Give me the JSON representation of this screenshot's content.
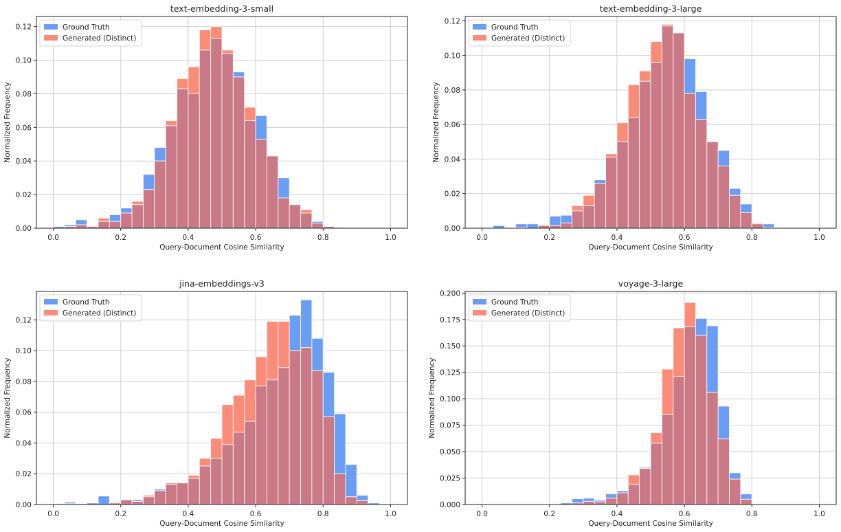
{
  "figure": {
    "legend": {
      "ground_truth": "Ground Truth",
      "generated": "Generated (Distinct)"
    },
    "colors": {
      "ground_truth": "#6a9ef5",
      "generated": "#fa8c78",
      "overlap": "#c97a86",
      "grid": "#cfcfcf",
      "axis": "#222222"
    }
  },
  "chart_data": [
    {
      "type": "bar",
      "title": "text-embedding-3-small",
      "xlabel": "Query-Document Cosine Similarity",
      "ylabel": "Normalized Frequency",
      "xlim": [
        -0.05,
        1.05
      ],
      "ylim": [
        0,
        0.126
      ],
      "xticks": [
        "0.0",
        "0.2",
        "0.4",
        "0.6",
        "0.8",
        "1.0"
      ],
      "xtick_values": [
        0,
        0.2,
        0.4,
        0.6,
        0.8,
        1.0
      ],
      "yticks": [
        "0.00",
        "0.02",
        "0.04",
        "0.06",
        "0.08",
        "0.10",
        "0.12"
      ],
      "ytick_values": [
        0,
        0.02,
        0.04,
        0.06,
        0.08,
        0.1,
        0.12
      ],
      "bin_edges_start": 0.0,
      "bin_width": 0.0333,
      "bins": 30,
      "grid": true,
      "legend": "top-left",
      "series": [
        {
          "name": "Ground Truth",
          "values": [
            0.001,
            0.002,
            0.005,
            0.001,
            0.004,
            0.008,
            0.012,
            0.014,
            0.032,
            0.048,
            0.061,
            0.083,
            0.08,
            0.106,
            0.113,
            0.104,
            0.093,
            0.064,
            0.067,
            0.043,
            0.03,
            0.014,
            0.009,
            0.004,
            0.001,
            0,
            0,
            0,
            0,
            0
          ]
        },
        {
          "name": "Generated (Distinct)",
          "values": [
            0,
            0.001,
            0.002,
            0.001,
            0.006,
            0.004,
            0.009,
            0.016,
            0.023,
            0.04,
            0.064,
            0.089,
            0.096,
            0.118,
            0.12,
            0.106,
            0.09,
            0.072,
            0.053,
            0.043,
            0.018,
            0.014,
            0.011,
            0.003,
            0.001,
            0.0005,
            0,
            0,
            0,
            0
          ]
        }
      ]
    },
    {
      "type": "bar",
      "title": "text-embedding-3-large",
      "xlabel": "Query-Document Cosine Similarity",
      "ylabel": "Normalized Frequency",
      "xlim": [
        -0.05,
        1.05
      ],
      "ylim": [
        0,
        0.1225
      ],
      "xticks": [
        "0.0",
        "0.2",
        "0.4",
        "0.6",
        "0.8",
        "1.0"
      ],
      "xtick_values": [
        0,
        0.2,
        0.4,
        0.6,
        0.8,
        1.0
      ],
      "yticks": [
        "0.00",
        "0.02",
        "0.04",
        "0.06",
        "0.08",
        "0.10",
        "0.12"
      ],
      "ytick_values": [
        0,
        0.02,
        0.04,
        0.06,
        0.08,
        0.1,
        0.12
      ],
      "bin_edges_start": 0.0,
      "bin_width": 0.0333,
      "bins": 30,
      "grid": true,
      "legend": "top-left",
      "series": [
        {
          "name": "Ground Truth",
          "values": [
            0,
            0.0015,
            0,
            0.0025,
            0.0025,
            0.0015,
            0.007,
            0.0075,
            0.01,
            0.013,
            0.028,
            0.041,
            0.05,
            0.064,
            0.085,
            0.096,
            0.117,
            0.113,
            0.098,
            0.079,
            0.05,
            0.045,
            0.023,
            0.014,
            0.003,
            0.0025,
            0,
            0,
            0,
            0
          ]
        },
        {
          "name": "Generated (Distinct)",
          "values": [
            0,
            0,
            0,
            0.0005,
            0,
            0.002,
            0.0015,
            0.003,
            0.013,
            0.019,
            0.026,
            0.043,
            0.061,
            0.083,
            0.091,
            0.108,
            0.118,
            0.113,
            0.078,
            0.063,
            0.05,
            0.036,
            0.019,
            0.009,
            0.0025,
            0.0005,
            0,
            0,
            0,
            0
          ]
        }
      ]
    },
    {
      "type": "bar",
      "title": "jina-embeddings-v3",
      "xlabel": "Query-Document Cosine Similarity",
      "ylabel": "Normalized Frequency",
      "xlim": [
        -0.05,
        1.05
      ],
      "ylim": [
        0,
        0.1385
      ],
      "xticks": [
        "0.0",
        "0.2",
        "0.4",
        "0.6",
        "0.8",
        "1.0"
      ],
      "xtick_values": [
        0,
        0.2,
        0.4,
        0.6,
        0.8,
        1.0
      ],
      "yticks": [
        "0.00",
        "0.02",
        "0.04",
        "0.06",
        "0.08",
        "0.10",
        "0.12"
      ],
      "ytick_values": [
        0,
        0.02,
        0.04,
        0.06,
        0.08,
        0.1,
        0.12
      ],
      "bin_edges_start": 0.0,
      "bin_width": 0.0333,
      "bins": 30,
      "grid": true,
      "legend": "top-left",
      "series": [
        {
          "name": "Ground Truth",
          "values": [
            0.0005,
            0.0015,
            0.0005,
            0.001,
            0.0055,
            0.001,
            0.003,
            0.003,
            0.005,
            0.01,
            0.013,
            0.014,
            0.017,
            0.025,
            0.03,
            0.039,
            0.047,
            0.054,
            0.077,
            0.081,
            0.089,
            0.123,
            0.133,
            0.108,
            0.086,
            0.059,
            0.026,
            0.006,
            0.001,
            0
          ]
        },
        {
          "name": "Generated (Distinct)",
          "values": [
            0,
            0.0005,
            0,
            0,
            0,
            0.0015,
            0.003,
            0.002,
            0.006,
            0.009,
            0.014,
            0.014,
            0.019,
            0.03,
            0.043,
            0.065,
            0.071,
            0.081,
            0.096,
            0.119,
            0.119,
            0.1,
            0.102,
            0.087,
            0.057,
            0.02,
            0.005,
            0.0025,
            0,
            0
          ]
        }
      ]
    },
    {
      "type": "bar",
      "title": "voyage-3-large",
      "xlabel": "Query-Document Cosine Similarity",
      "ylabel": "Normalized Frequency",
      "xlim": [
        -0.05,
        1.05
      ],
      "ylim": [
        0,
        0.2015
      ],
      "xticks": [
        "0.0",
        "0.2",
        "0.4",
        "0.6",
        "0.8",
        "1.0"
      ],
      "xtick_values": [
        0,
        0.2,
        0.4,
        0.6,
        0.8,
        1.0
      ],
      "yticks": [
        "0.000",
        "0.025",
        "0.050",
        "0.075",
        "0.100",
        "0.125",
        "0.150",
        "0.175",
        "0.200"
      ],
      "ytick_values": [
        0,
        0.025,
        0.05,
        0.075,
        0.1,
        0.125,
        0.15,
        0.175,
        0.2
      ],
      "bin_edges_start": 0.0,
      "bin_width": 0.0333,
      "bins": 30,
      "grid": true,
      "legend": "top-left",
      "series": [
        {
          "name": "Ground Truth",
          "values": [
            0,
            0,
            0,
            0,
            0,
            0,
            0.0005,
            0.0015,
            0.0055,
            0.006,
            0.004,
            0.01,
            0.013,
            0.019,
            0.035,
            0.058,
            0.085,
            0.121,
            0.168,
            0.176,
            0.169,
            0.093,
            0.03,
            0.01,
            0,
            0,
            0,
            0,
            0,
            0
          ]
        },
        {
          "name": "Generated (Distinct)",
          "values": [
            0,
            0,
            0,
            0,
            0,
            0,
            0,
            0,
            0.0015,
            0.003,
            0.0025,
            0.006,
            0.011,
            0.028,
            0.034,
            0.068,
            0.128,
            0.167,
            0.191,
            0.16,
            0.106,
            0.062,
            0.024,
            0.005,
            0.0005,
            0,
            0,
            0,
            0,
            0
          ]
        }
      ]
    }
  ]
}
